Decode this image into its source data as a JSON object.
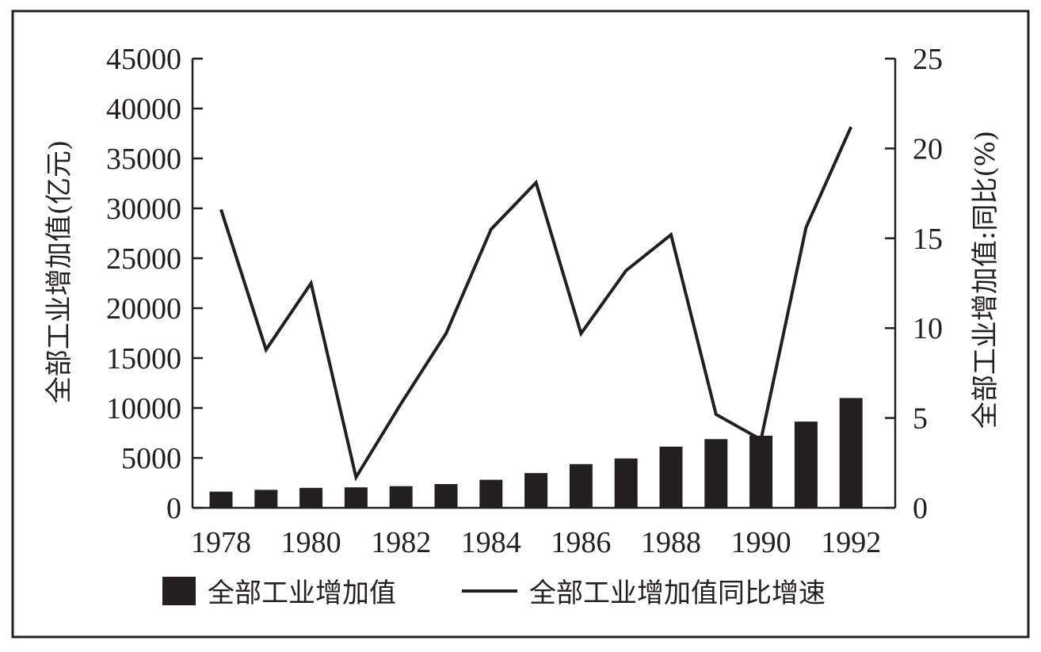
{
  "chart_data": {
    "type": "bar",
    "categories": [
      "1978",
      "1979",
      "1980",
      "1981",
      "1982",
      "1983",
      "1984",
      "1985",
      "1986",
      "1987",
      "1988",
      "1989",
      "1990",
      "1991",
      "1992"
    ],
    "x_tick_labels": [
      "1978",
      "1980",
      "1982",
      "1984",
      "1986",
      "1988",
      "1990",
      "1992"
    ],
    "series": [
      {
        "name": "全部工业增加值",
        "type": "bar",
        "axis": "left",
        "values": [
          1620,
          1800,
          2000,
          2050,
          2170,
          2380,
          2810,
          3480,
          4380,
          4940,
          6130,
          6880,
          7220,
          8640,
          11000
        ]
      },
      {
        "name": "全部工业增加值同比增速",
        "type": "line",
        "axis": "right",
        "values": [
          16.6,
          8.8,
          12.5,
          1.7,
          5.8,
          9.7,
          15.5,
          18.1,
          9.7,
          13.2,
          15.2,
          5.2,
          3.8,
          15.6,
          21.2
        ]
      }
    ],
    "y_left": {
      "label": "全部工业增加值(亿元)",
      "range": [
        0,
        45000
      ],
      "ticks": [
        "0",
        "5000",
        "10000",
        "15000",
        "20000",
        "25000",
        "30000",
        "35000",
        "40000",
        "45000"
      ]
    },
    "y_right": {
      "label": "全部工业增加值:同比(%)",
      "range": [
        0,
        25
      ],
      "ticks": [
        "0",
        "5",
        "10",
        "15",
        "20",
        "25"
      ]
    },
    "legend": {
      "position": "bottom",
      "items": [
        "全部工业增加值",
        "全部工业增加值同比增速"
      ]
    },
    "grid": false,
    "colors": {
      "bar": "#231f20",
      "line": "#231f20",
      "frame": "#231f20"
    }
  }
}
